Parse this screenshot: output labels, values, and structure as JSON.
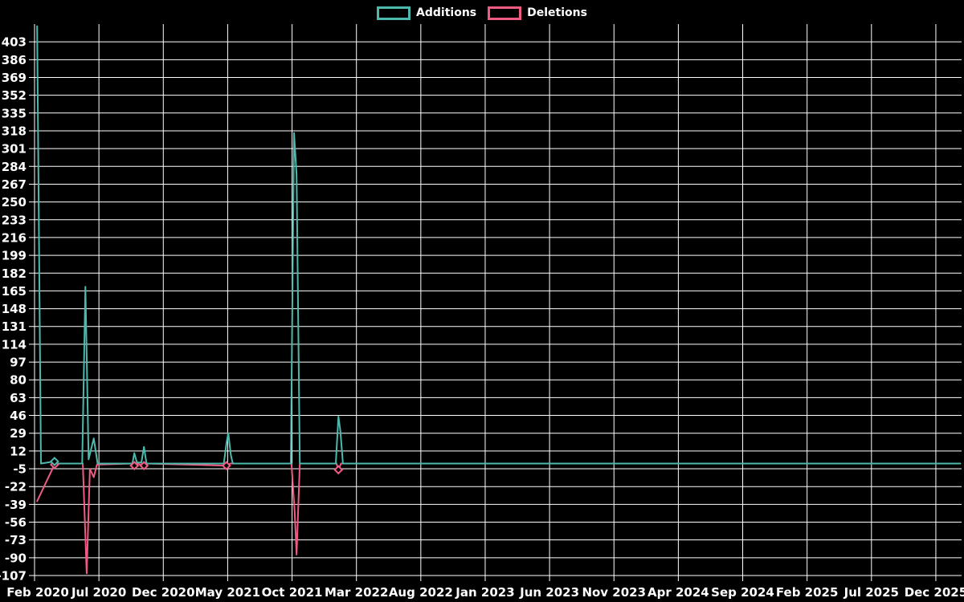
{
  "legend": {
    "additions_label": "Additions",
    "deletions_label": "Deletions"
  },
  "colors": {
    "additions": "#4DB8AC",
    "deletions": "#EF5B82",
    "grid": "#FFFFFF",
    "background": "#000000",
    "text": "#FFFFFF"
  },
  "chart_data": {
    "type": "line",
    "title": "",
    "xlabel": "",
    "ylabel": "",
    "x_axis": {
      "unit": "months after Feb 2020",
      "domain": [
        0,
        72
      ],
      "tick_positions": [
        0,
        5,
        10,
        15,
        20,
        25,
        30,
        35,
        40,
        45,
        50,
        55,
        60,
        65,
        70
      ],
      "tick_labels": [
        "Feb 2020",
        "Jul 2020",
        "Dec 2020",
        "May 2021",
        "Oct 2021",
        "Mar 2022",
        "Aug 2022",
        "Jan 2023",
        "Jun 2023",
        "Nov 2023",
        "Apr 2024",
        "Sep 2024",
        "Feb 2025",
        "Jul 2025",
        "Dec 2025"
      ]
    },
    "y_axis": {
      "domain": [
        -107,
        420
      ],
      "tick_step": 17,
      "tick_labels": [
        "403",
        "386",
        "369",
        "352",
        "335",
        "318",
        "301",
        "284",
        "267",
        "250",
        "233",
        "216",
        "199",
        "182",
        "165",
        "148",
        "131",
        "114",
        "97",
        "80",
        "63",
        "46",
        "29",
        "12",
        "-5",
        "-22",
        "-39",
        "-56",
        "-73",
        "-90",
        "-107"
      ],
      "tick_values": [
        403,
        386,
        369,
        352,
        335,
        318,
        301,
        284,
        267,
        250,
        233,
        216,
        199,
        182,
        165,
        148,
        131,
        114,
        97,
        80,
        63,
        46,
        29,
        12,
        -5,
        -22,
        -39,
        -56,
        -73,
        -90,
        -107
      ]
    },
    "grid": true,
    "legend_position": "top-center",
    "series": [
      {
        "name": "Deletions",
        "color_key": "deletions",
        "points": [
          [
            0.2,
            -36
          ],
          [
            1.55,
            -1
          ],
          [
            1.8,
            0
          ],
          [
            3.75,
            0
          ],
          [
            4.05,
            -105
          ],
          [
            4.3,
            -5
          ],
          [
            4.6,
            -13
          ],
          [
            4.85,
            -1
          ],
          [
            7.6,
            0
          ],
          [
            7.75,
            -2
          ],
          [
            7.95,
            0
          ],
          [
            8.5,
            -2
          ],
          [
            8.7,
            0
          ],
          [
            14.9,
            -2
          ],
          [
            15.2,
            0
          ],
          [
            19.95,
            0
          ],
          [
            20.2,
            -46
          ],
          [
            20.35,
            -87
          ],
          [
            20.6,
            0
          ],
          [
            23.45,
            0
          ],
          [
            23.6,
            -6
          ],
          [
            23.8,
            0
          ],
          [
            71.9,
            0
          ]
        ]
      },
      {
        "name": "Additions",
        "color_key": "additions",
        "points": [
          [
            0.2,
            418
          ],
          [
            0.5,
            0
          ],
          [
            1.55,
            2
          ],
          [
            1.8,
            0
          ],
          [
            3.7,
            0
          ],
          [
            3.95,
            169
          ],
          [
            4.2,
            4
          ],
          [
            4.6,
            24
          ],
          [
            4.9,
            0
          ],
          [
            7.6,
            0
          ],
          [
            7.75,
            10
          ],
          [
            7.95,
            1
          ],
          [
            8.3,
            1
          ],
          [
            8.5,
            16
          ],
          [
            8.7,
            0
          ],
          [
            14.7,
            0
          ],
          [
            14.9,
            19
          ],
          [
            15.05,
            29
          ],
          [
            15.25,
            8
          ],
          [
            15.4,
            0
          ],
          [
            19.9,
            0
          ],
          [
            20.15,
            316
          ],
          [
            20.35,
            276
          ],
          [
            20.6,
            0
          ],
          [
            23.4,
            0
          ],
          [
            23.6,
            45
          ],
          [
            23.75,
            31
          ],
          [
            23.95,
            0
          ],
          [
            71.9,
            0
          ]
        ]
      }
    ],
    "markers": [
      {
        "series": "Deletions",
        "point": [
          1.55,
          -1
        ]
      },
      {
        "series": "Deletions",
        "point": [
          7.75,
          -2
        ]
      },
      {
        "series": "Deletions",
        "point": [
          8.5,
          -2
        ]
      },
      {
        "series": "Deletions",
        "point": [
          14.9,
          -2
        ]
      },
      {
        "series": "Deletions",
        "point": [
          23.6,
          -6
        ]
      },
      {
        "series": "Additions",
        "point": [
          1.55,
          2
        ]
      }
    ]
  }
}
